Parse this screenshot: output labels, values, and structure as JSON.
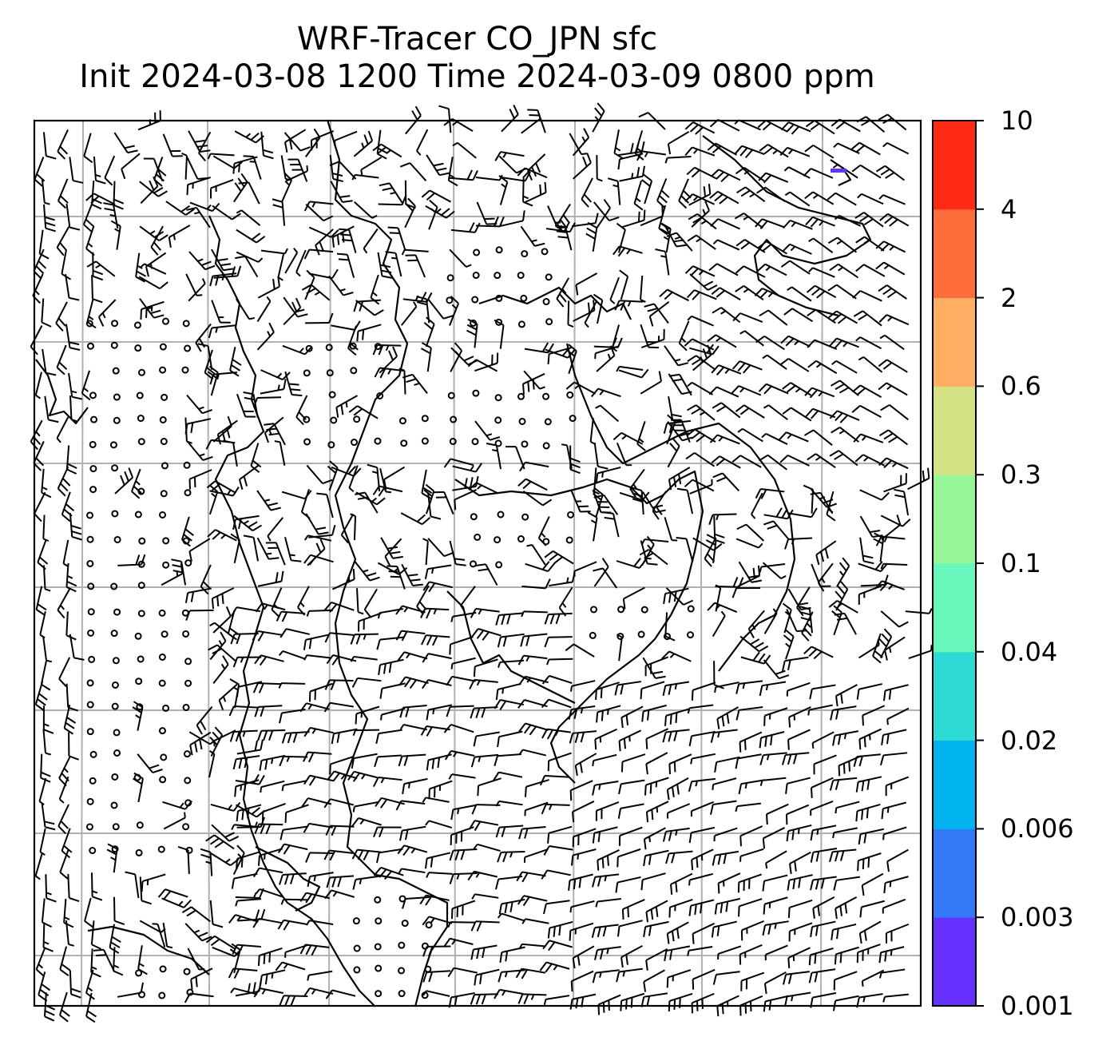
{
  "title": {
    "line1": "WRF-Tracer CO_JPN sfc",
    "line2": "Init 2024-03-08 1200 Time 2024-03-09 0800 ppm"
  },
  "colorbar": {
    "levels": [
      "0.001",
      "0.003",
      "0.006",
      "0.02",
      "0.04",
      "0.1",
      "0.3",
      "0.6",
      "2",
      "4",
      "10"
    ],
    "colors": [
      "#6630ff",
      "#3378f5",
      "#00b2ee",
      "#2ddbd4",
      "#66f7bb",
      "#96f596",
      "#d3e384",
      "#ffae63",
      "#ff6c3c",
      "#ff2a14"
    ]
  },
  "map": {
    "barb_color": "#000000",
    "coastline_color": "#000000",
    "gridline_color": "#b0b0b0",
    "tracer_patch_color": "#6630ff"
  }
}
